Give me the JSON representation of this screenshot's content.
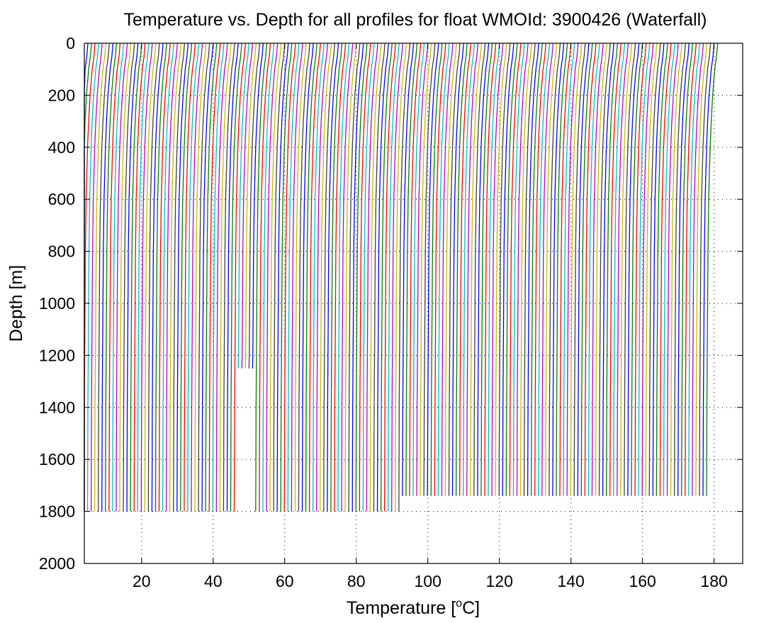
{
  "chart_data": {
    "type": "line",
    "title": "Temperature vs. Depth for all profiles for float WMOId: 3900426 (Waterfall)",
    "xlabel_main": "Temperature [",
    "xlabel_sup": "o",
    "xlabel_end": "C]",
    "ylabel": "Depth [m]",
    "xlim": [
      4,
      188
    ],
    "ylim": [
      0,
      2000
    ],
    "y_reversed": true,
    "grid": true,
    "x_ticks": [
      20,
      40,
      60,
      80,
      100,
      120,
      140,
      160,
      180
    ],
    "x_tick_labels": [
      "20",
      "40",
      "60",
      "80",
      "100",
      "120",
      "140",
      "160",
      "180"
    ],
    "y_ticks": [
      0,
      200,
      400,
      600,
      800,
      1000,
      1200,
      1400,
      1600,
      1800,
      2000
    ],
    "y_tick_labels": [
      "0",
      "200",
      "400",
      "600",
      "800",
      "1000",
      "1200",
      "1400",
      "1600",
      "1800",
      "2000"
    ],
    "series_colors": [
      "#0000ff",
      "#007f00",
      "#ff0000",
      "#00bfbf",
      "#bf00bf",
      "#bfbf00",
      "#3f3f3f"
    ],
    "profile_count": 177,
    "profile_spacing": 1.0,
    "first_profile_surface_temp": 5.0,
    "profile_shape": {
      "depth": [
        0,
        50,
        100,
        200,
        300,
        400,
        500,
        600,
        800,
        1000,
        1200,
        1400,
        1600,
        1800
      ],
      "temp_offset": [
        0,
        -0.3,
        -0.8,
        -1.4,
        -1.8,
        -2.1,
        -2.3,
        -2.5,
        -2.7,
        -2.8,
        -2.9,
        -3.0,
        -3.05,
        -3.1
      ]
    },
    "profile_max_depth": {
      "profile_ranges": [
        [
          0,
          44,
          1805
        ],
        [
          45,
          49,
          1250
        ],
        [
          50,
          90,
          1800
        ],
        [
          91,
          176,
          1740
        ]
      ]
    }
  }
}
